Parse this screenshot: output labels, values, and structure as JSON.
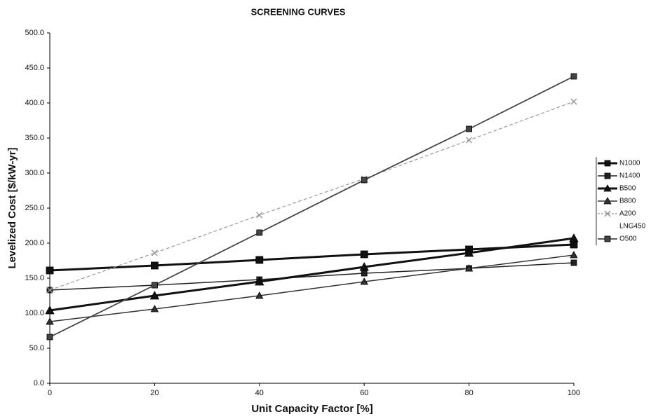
{
  "chart_data": {
    "type": "line",
    "title": "SCREENING CURVES",
    "x_label": "Unit Capacity Factor [%]",
    "y_label": "Levelized Cost [$/kW-yr]",
    "x": [
      0,
      20,
      40,
      60,
      80,
      100
    ],
    "xlim": [
      0,
      100
    ],
    "xticks": [
      0,
      20,
      40,
      60,
      80,
      100
    ],
    "ylim": [
      0,
      500
    ],
    "yticks": [
      {
        "value": 0,
        "label": "0.0"
      },
      {
        "value": 50,
        "label": "50.0"
      },
      {
        "value": 100,
        "label": "100.0"
      },
      {
        "value": 150,
        "label": "150.0"
      },
      {
        "value": 200,
        "label": "200.0"
      },
      {
        "value": 250,
        "label": "250.0"
      },
      {
        "value": 300,
        "label": "300.0"
      },
      {
        "value": 350,
        "label": "350.0"
      },
      {
        "value": 400,
        "label": "400.0"
      },
      {
        "value": 450,
        "label": "450.0"
      },
      {
        "value": 500,
        "label": "500.0"
      }
    ],
    "grid": false,
    "legend": "right",
    "series": [
      {
        "name": "N1000",
        "color": "#111111",
        "marker": "square",
        "width": 3,
        "values": [
          161,
          168,
          176,
          184,
          191,
          198
        ]
      },
      {
        "name": "N1400",
        "color": "#222222",
        "marker": "square",
        "width": 1.5,
        "values": [
          133,
          140,
          148,
          157,
          164,
          172
        ]
      },
      {
        "name": "B500",
        "color": "#111111",
        "marker": "triangle",
        "width": 3,
        "values": [
          104,
          125,
          145,
          166,
          186,
          207
        ]
      },
      {
        "name": "B800",
        "color": "#333333",
        "marker": "triangle",
        "width": 1.5,
        "values": [
          88,
          106,
          125,
          145,
          164,
          183
        ]
      },
      {
        "name": "A200",
        "color": "#999999",
        "marker": "cross",
        "width": 1.2,
        "dash": true,
        "values": [
          133,
          186,
          240,
          292,
          347,
          402
        ]
      },
      {
        "name": "LNG450",
        "color": "#ffffff",
        "marker": "none",
        "width": 1,
        "values": [
          null,
          null,
          null,
          null,
          null,
          null
        ]
      },
      {
        "name": "O500",
        "color": "#444444",
        "marker": "square",
        "width": 1.8,
        "values": [
          66,
          140,
          215,
          290,
          363,
          438
        ]
      }
    ]
  }
}
